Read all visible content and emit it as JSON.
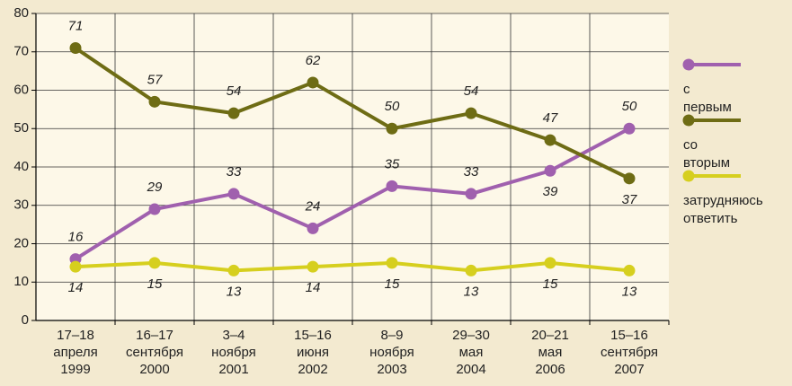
{
  "chart_data": {
    "type": "line",
    "categories": [
      [
        "17–18",
        "апреля",
        "1999"
      ],
      [
        "16–17",
        "сентября",
        "2000"
      ],
      [
        "3–4",
        "ноября",
        "2001"
      ],
      [
        "15–16",
        "июня",
        "2002"
      ],
      [
        "8–9",
        "ноября",
        "2003"
      ],
      [
        "29–30",
        "мая",
        "2004"
      ],
      [
        "20–21",
        "мая",
        "2006"
      ],
      [
        "15–16",
        "сентября",
        "2007"
      ]
    ],
    "series": [
      {
        "name": "с первым",
        "color": "#a060ae",
        "values": [
          16,
          29,
          33,
          24,
          35,
          33,
          39,
          50
        ]
      },
      {
        "name": "со вторым",
        "color": "#6e6c14",
        "values": [
          71,
          57,
          54,
          62,
          50,
          54,
          47,
          37
        ]
      },
      {
        "name": "затрудняюсь ответить",
        "color": "#d6cf1e",
        "values": [
          14,
          15,
          13,
          14,
          15,
          13,
          15,
          13
        ]
      }
    ],
    "ylim": [
      0,
      80
    ],
    "yticks": [
      0,
      10,
      20,
      30,
      40,
      50,
      60,
      70,
      80
    ],
    "grid": true,
    "legend": "right"
  }
}
